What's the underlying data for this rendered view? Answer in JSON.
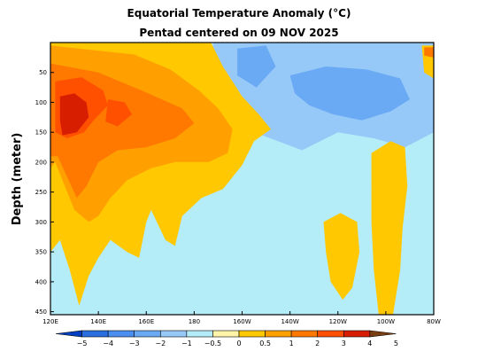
{
  "chart_data": {
    "type": "heatmap",
    "title": "Equatorial Temperature Anomaly (°C)",
    "subtitle": "Pentad centered on 09 NOV 2025",
    "xlabel": "",
    "ylabel": "Depth (meter)",
    "x_ticks": [
      "120E",
      "140E",
      "160E",
      "180",
      "160W",
      "140W",
      "120W",
      "100W",
      "80W"
    ],
    "x_tick_lon": [
      120,
      140,
      160,
      180,
      200,
      220,
      240,
      260,
      280
    ],
    "xlim": [
      120,
      280
    ],
    "y_ticks": [
      50,
      100,
      150,
      200,
      250,
      300,
      350,
      400,
      450
    ],
    "ylim": [
      0,
      455
    ],
    "colorbar": {
      "ticks": [
        "−5",
        "−4",
        "−3",
        "−2",
        "−1",
        "−0.5",
        "0",
        "0.5",
        "1",
        "2",
        "3",
        "4",
        "5"
      ],
      "colors": [
        "#0040c0",
        "#2a6fe0",
        "#4a8ef0",
        "#6aaaf4",
        "#96c8f8",
        "#b4ecf8",
        "#fff4a8",
        "#ffc800",
        "#ffa000",
        "#ff7800",
        "#ff5000",
        "#d81e00",
        "#7a3e10"
      ]
    },
    "regions": [
      {
        "level": "-1",
        "lon_min": 190,
        "lon_max": 280,
        "depth_min": 0,
        "depth_max": 150
      },
      {
        "level": "-2",
        "lon_min": 235,
        "lon_max": 270,
        "depth_min": 70,
        "depth_max": 130
      },
      {
        "level": "1",
        "lon_min": 120,
        "lon_max": 200,
        "depth_min": 40,
        "depth_max": 300
      },
      {
        "level": "2",
        "lon_min": 120,
        "lon_max": 190,
        "depth_min": 60,
        "depth_max": 230
      },
      {
        "level": "3",
        "lon_min": 123,
        "lon_max": 140,
        "depth_min": 70,
        "depth_max": 165
      },
      {
        "level": "4",
        "lon_min": 124,
        "lon_max": 135,
        "depth_min": 85,
        "depth_max": 150
      },
      {
        "level": "2",
        "lon_min": 275,
        "lon_max": 280,
        "depth_min": 5,
        "depth_max": 30
      }
    ]
  }
}
